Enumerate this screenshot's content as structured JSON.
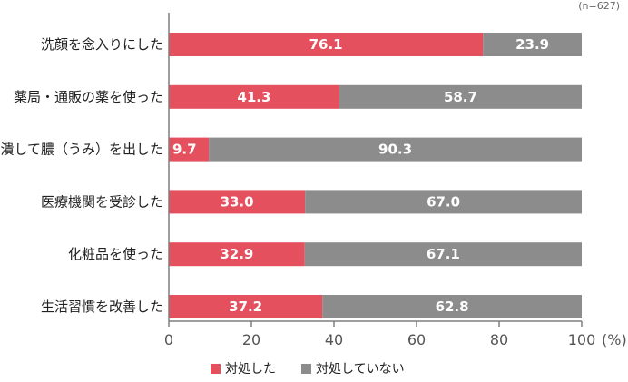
{
  "chart_data": {
    "type": "bar",
    "orientation": "horizontal",
    "stacked": true,
    "note": "(n=627)",
    "unit": "(%)",
    "categories": [
      "洗顔を念入りにした",
      "薬局・通販の薬を使った",
      "潰して膿（うみ）を出した",
      "医療機関を受診した",
      "化粧品を使った",
      "生活習慣を改善した"
    ],
    "series": [
      {
        "name": "対処した",
        "color": "#e5505f",
        "values": [
          76.1,
          41.3,
          9.7,
          33.0,
          32.9,
          37.2
        ]
      },
      {
        "name": "対処していない",
        "color": "#8c8c8c",
        "values": [
          23.9,
          58.7,
          90.3,
          67.0,
          67.1,
          62.8
        ]
      }
    ],
    "xlim": [
      0,
      100
    ],
    "xticks": [
      0,
      20,
      40,
      60,
      80,
      100
    ],
    "grid": false,
    "legend_position": "bottom"
  }
}
